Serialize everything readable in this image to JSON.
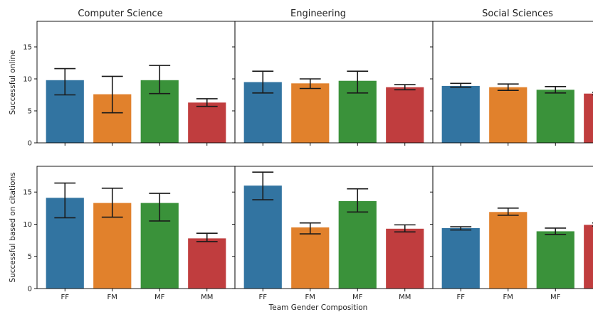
{
  "chart_data": {
    "type": "bar",
    "xlabel": "Team Gender Composition",
    "categories": [
      "FF",
      "FM",
      "MF",
      "MM"
    ],
    "colors": [
      "#3274a1",
      "#e1812c",
      "#3a923a",
      "#c03d3e"
    ],
    "columns": [
      "Computer Science",
      "Engineering",
      "Social Sciences"
    ],
    "rows": [
      {
        "ylabel": "Successful online",
        "ylim": [
          0,
          19
        ],
        "yticks": [
          0,
          5,
          10,
          15
        ],
        "panels": [
          {
            "title": "Computer Science",
            "values": [
              9.8,
              7.6,
              9.8,
              6.3
            ],
            "err_low": [
              7.5,
              4.7,
              7.7,
              5.7
            ],
            "err_high": [
              11.6,
              10.4,
              12.1,
              6.9
            ]
          },
          {
            "title": "Engineering",
            "values": [
              9.5,
              9.3,
              9.7,
              8.7
            ],
            "err_low": [
              7.8,
              8.5,
              7.8,
              8.3
            ],
            "err_high": [
              11.2,
              10.0,
              11.2,
              9.1
            ]
          },
          {
            "title": "Social Sciences",
            "values": [
              8.9,
              8.7,
              8.3,
              7.7
            ],
            "err_low": [
              8.7,
              8.2,
              7.8,
              7.5
            ],
            "err_high": [
              9.3,
              9.2,
              8.8,
              7.9
            ]
          }
        ]
      },
      {
        "ylabel": "Successful based on citations",
        "ylim": [
          0,
          19
        ],
        "yticks": [
          0,
          5,
          10,
          15
        ],
        "panels": [
          {
            "title": "Computer Science",
            "values": [
              14.1,
              13.3,
              13.3,
              7.8
            ],
            "err_low": [
              11.0,
              11.1,
              10.5,
              7.3
            ],
            "err_high": [
              16.4,
              15.6,
              14.8,
              8.6
            ]
          },
          {
            "title": "Engineering",
            "values": [
              16.0,
              9.5,
              13.6,
              9.3
            ],
            "err_low": [
              13.8,
              8.5,
              11.9,
              8.8
            ],
            "err_high": [
              18.1,
              10.2,
              15.5,
              9.9
            ]
          },
          {
            "title": "Social Sciences",
            "values": [
              9.4,
              11.9,
              8.9,
              9.9
            ],
            "err_low": [
              9.1,
              11.4,
              8.4,
              9.7
            ],
            "err_high": [
              9.6,
              12.5,
              9.4,
              10.2
            ]
          }
        ]
      }
    ]
  }
}
